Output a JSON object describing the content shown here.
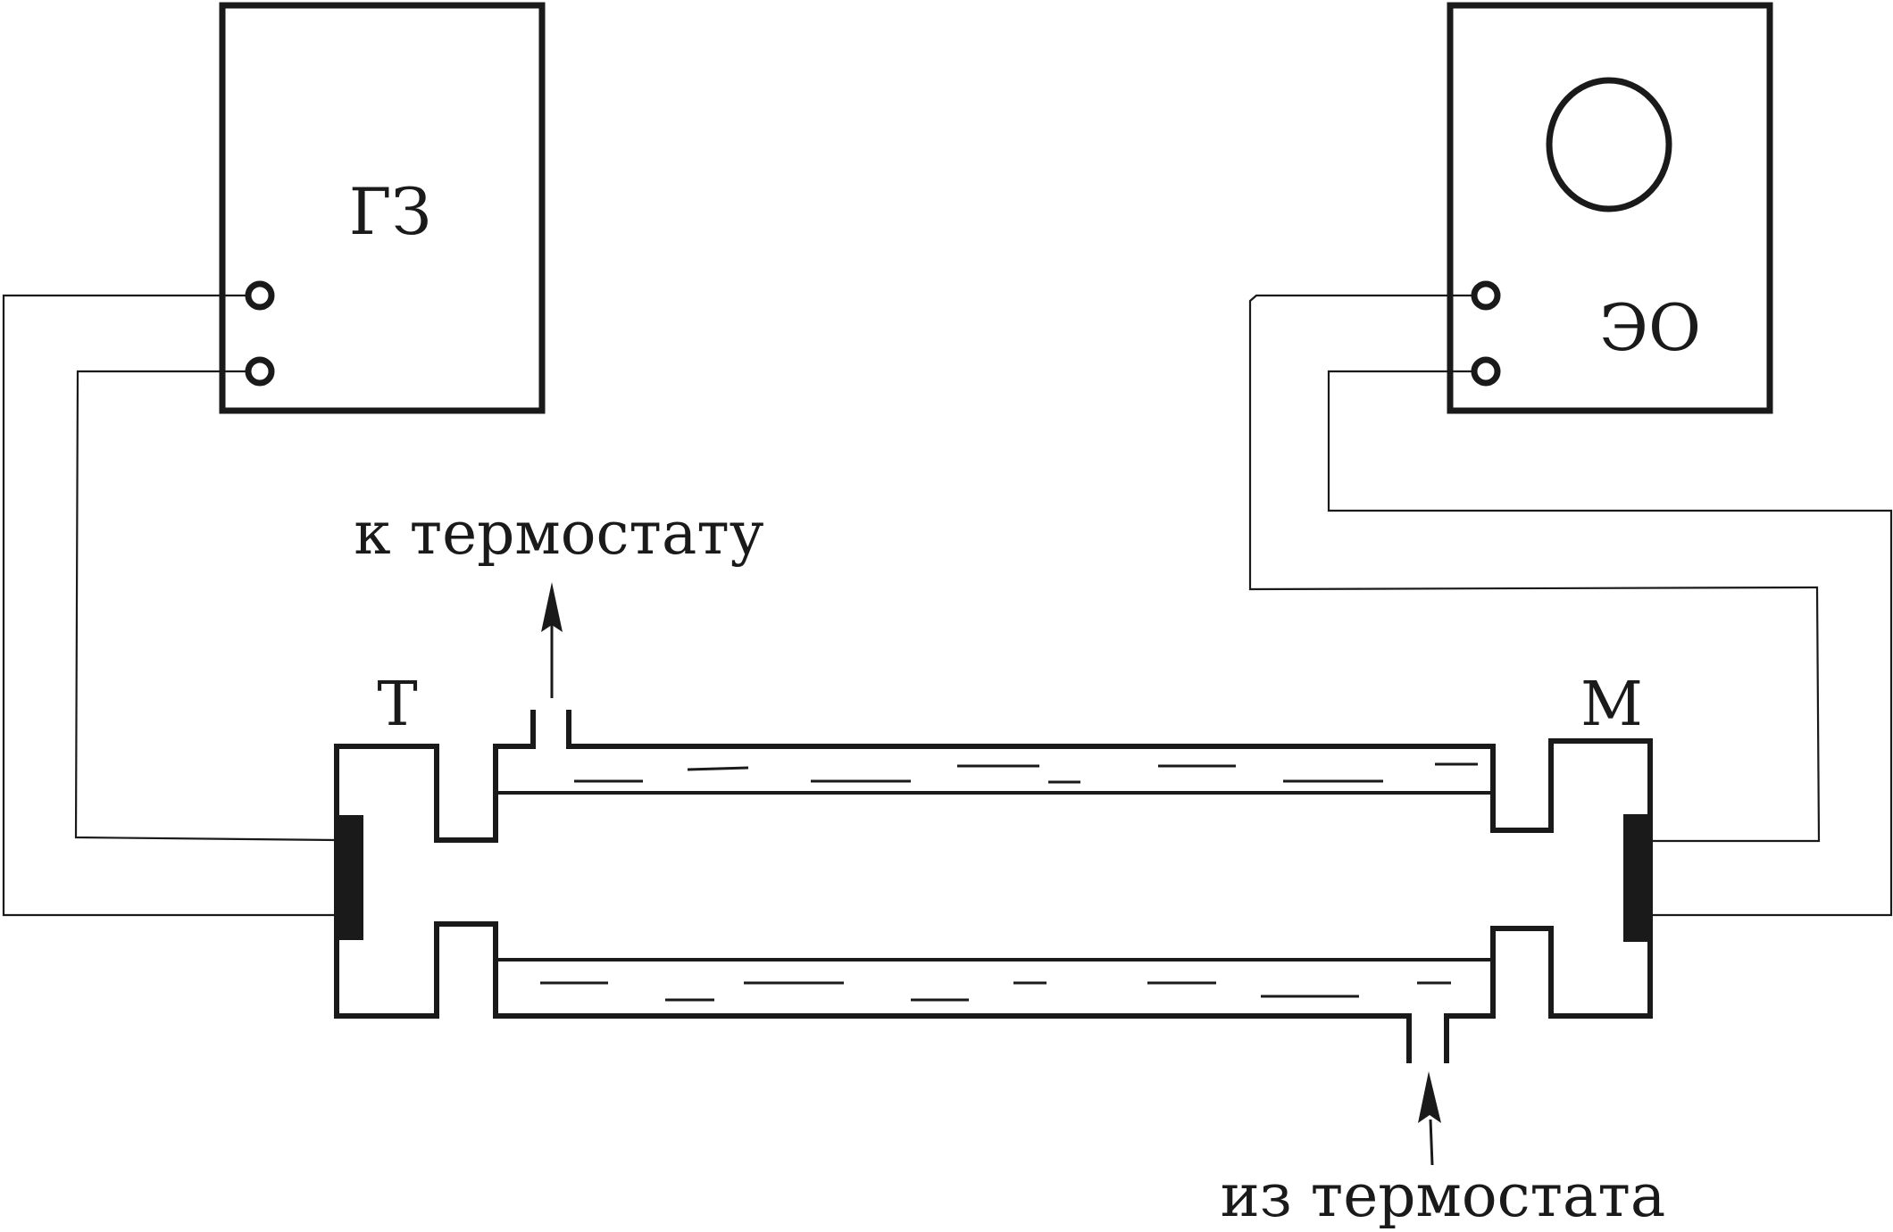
{
  "diagram": {
    "generator_label": "ГЗ",
    "oscilloscope_label": "ЭО",
    "transmitter_label": "Т",
    "receiver_label": "М",
    "outflow_label": "к термостату",
    "inflow_label": "из термостата"
  },
  "colors": {
    "ink": "#1a1a1a",
    "background": "#ffffff"
  }
}
